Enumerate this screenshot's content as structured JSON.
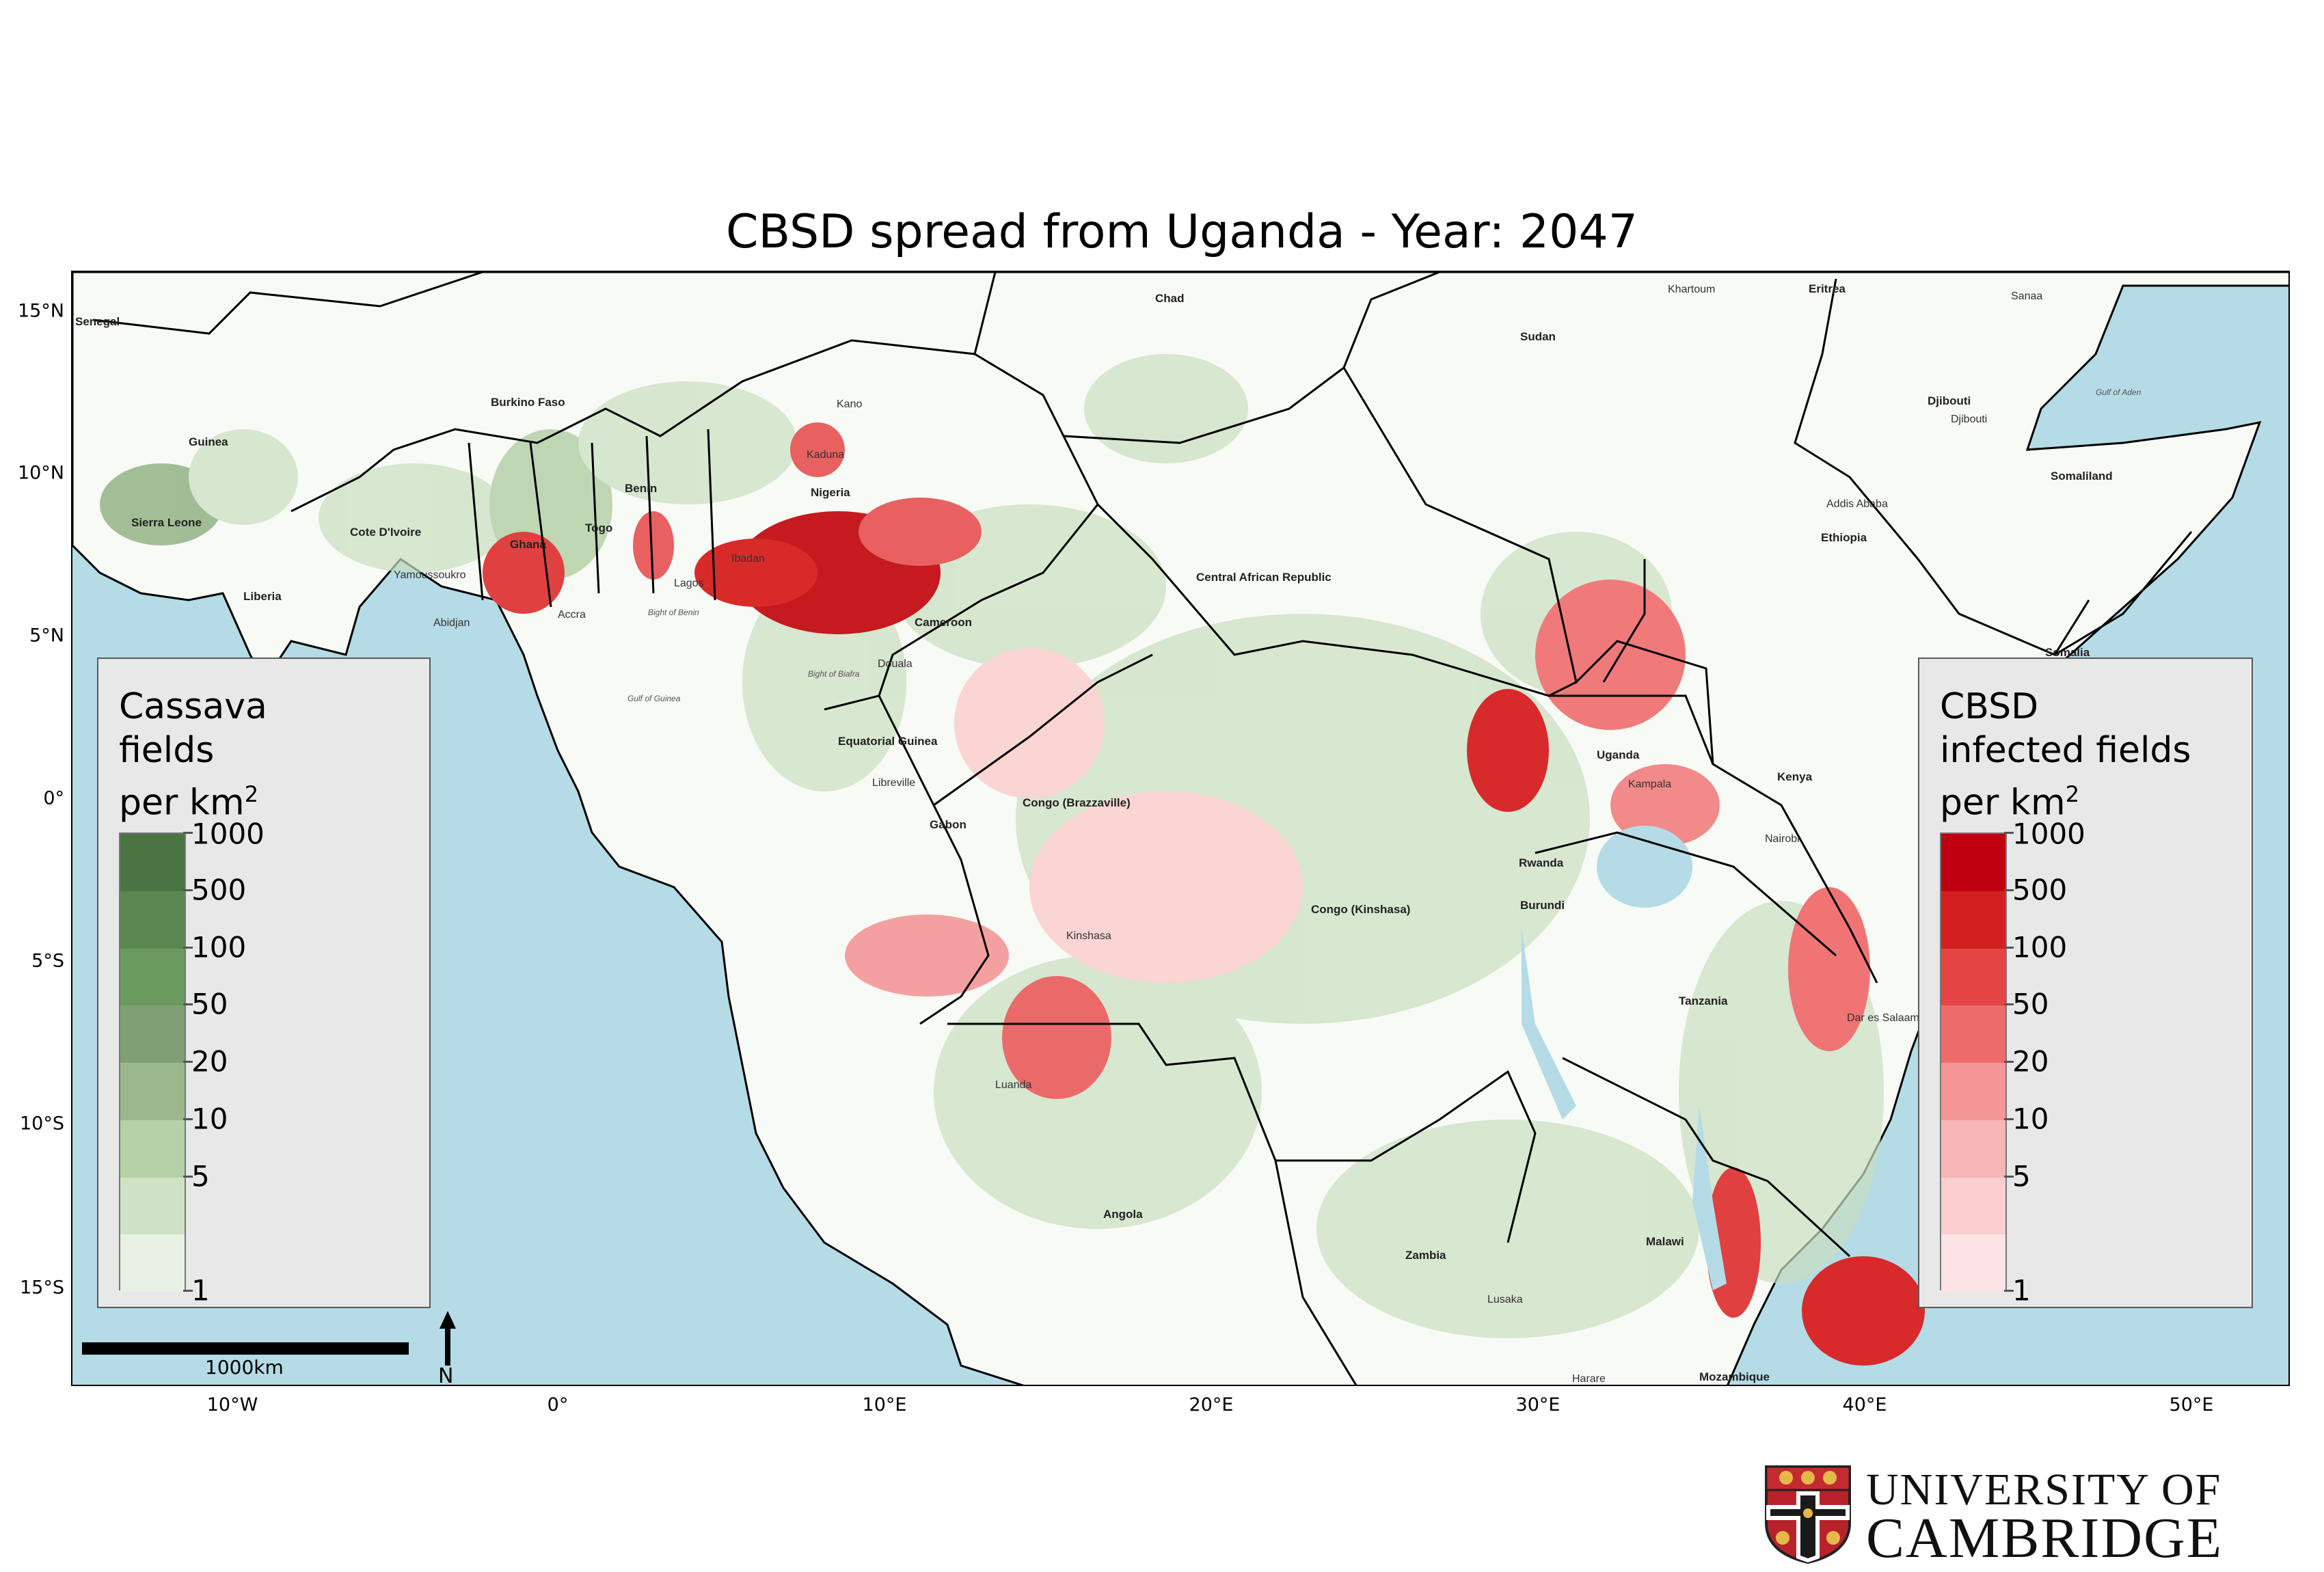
{
  "title": "CBSD spread from Uganda - Year: 2047",
  "axes": {
    "lat_ticks": [
      "15°N",
      "10°N",
      "5°N",
      "0°",
      "5°S",
      "10°S",
      "15°S"
    ],
    "lon_ticks": [
      "10°W",
      "0°",
      "10°E",
      "20°E",
      "30°E",
      "40°E",
      "50°E"
    ]
  },
  "map_labels": {
    "countries": [
      "Senegal",
      "Guinea",
      "Sierra Leone",
      "Liberia",
      "Cote D'Ivoire",
      "Burkino Faso",
      "Ghana",
      "Togo",
      "Benin",
      "Nigeria",
      "Cameroon",
      "Chad",
      "Sudan",
      "Eritrea",
      "Djibouti",
      "Somaliland",
      "Ethiopia",
      "Somalia",
      "Central African Republic",
      "Equatorial Guinea",
      "Gabon",
      "Congo (Brazzaville)",
      "Congo (Kinshasa)",
      "Uganda",
      "Kenya",
      "Rwanda",
      "Burundi",
      "Tanzania",
      "Angola",
      "Zambia",
      "Malawi",
      "Mozambique"
    ],
    "cities": [
      "Kano",
      "Kaduna",
      "Ibadan",
      "Lagos",
      "Accra",
      "Abidjan",
      "Yamoussoukro",
      "Douala",
      "Libreville",
      "Kinshasa",
      "Luanda",
      "Lusaka",
      "Harare",
      "Kampala",
      "Nairobi",
      "Dar es Salaam",
      "Addis Ababa",
      "Khartoum",
      "Sanaa",
      "Djibouti"
    ],
    "water": [
      "Gulf of Guinea",
      "Bight of Benin",
      "Bight of Biafra",
      "Gulf of Aden"
    ]
  },
  "legend_cassava": {
    "title_line1": "Cassava",
    "title_line2": "fields",
    "title_line3": "per km",
    "title_sup": "2",
    "ticks": [
      "1000",
      "500",
      "100",
      "50",
      "20",
      "10",
      "5",
      "1"
    ],
    "colors": [
      "#4a7442",
      "#5a8850",
      "#6b9a5e",
      "#809f74",
      "#9ab88b",
      "#b5d1a8",
      "#d0e2c6",
      "#e8f1e3"
    ]
  },
  "legend_cbsd": {
    "title_line1": "CBSD",
    "title_line2": "infected fields",
    "title_line3": "per km",
    "title_sup": "2",
    "ticks": [
      "1000",
      "500",
      "100",
      "50",
      "20",
      "10",
      "5",
      "1"
    ],
    "colors": [
      "#bf0010",
      "#d42020",
      "#e44444",
      "#ec6c6c",
      "#f49696",
      "#f8b6b6",
      "#fbcfcf",
      "#fde4e6"
    ]
  },
  "scale_bar": {
    "label": "1000km"
  },
  "north_arrow": {
    "label": "N"
  },
  "logo": {
    "line1": "UNIVERSITY OF",
    "line2": "CAMBRIDGE"
  }
}
